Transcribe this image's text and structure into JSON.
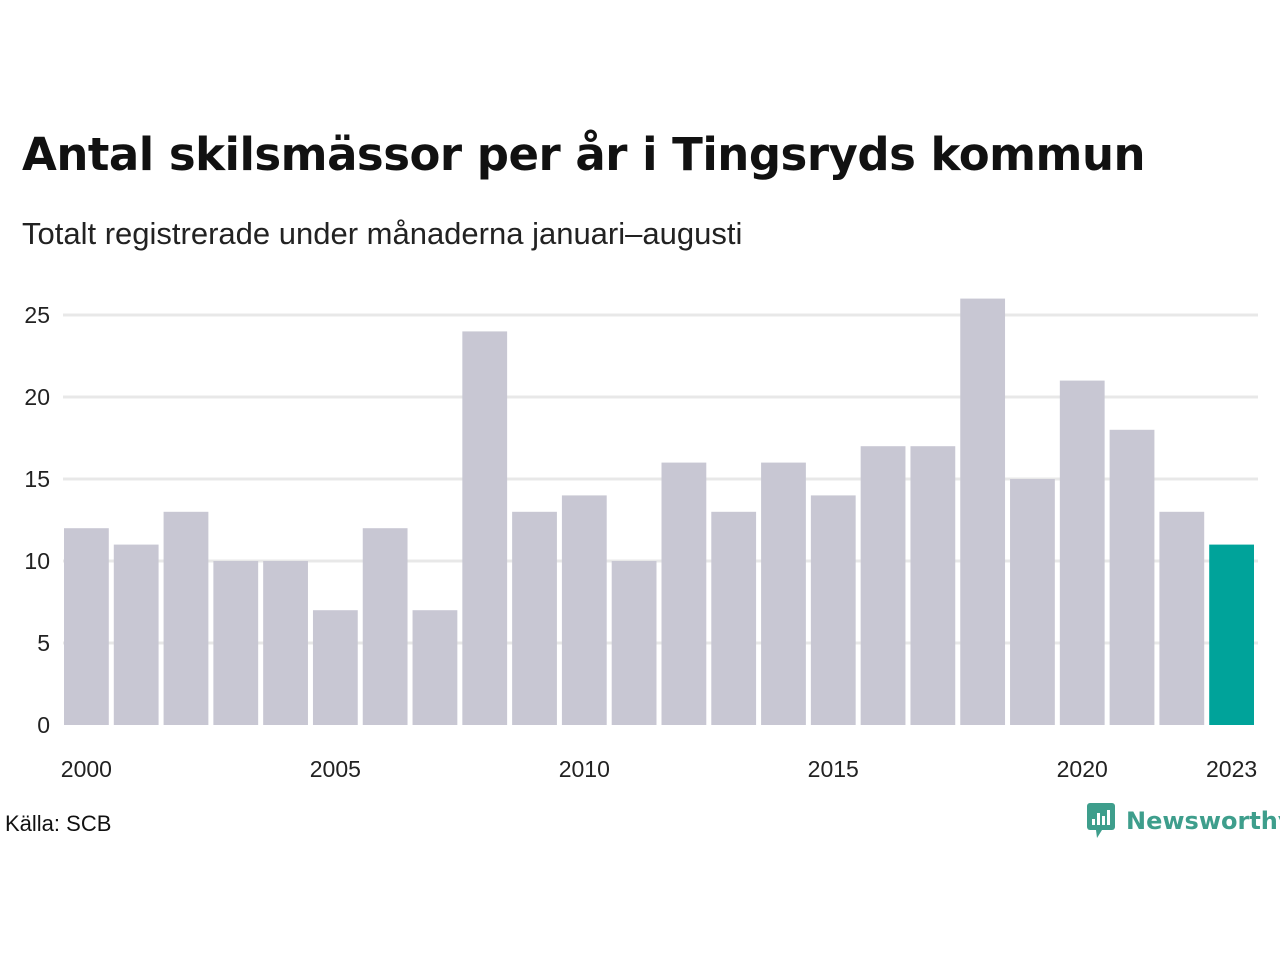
{
  "header": {
    "title": "Antal skilsmässor per år i Tingsryds kommun",
    "subtitle": "Totalt registrerade under månaderna januari–augusti"
  },
  "footer": {
    "source": "Källa: SCB",
    "brand_name": "Newsworthy",
    "brand_icon": "newsworthy-logo-icon",
    "brand_color": "#3e9e8c"
  },
  "chart_data": {
    "type": "bar",
    "title": "Antal skilsmässor per år i Tingsryds kommun",
    "subtitle": "Totalt registrerade under månaderna januari–augusti",
    "xlabel": "",
    "ylabel": "",
    "categories": [
      "2000",
      "2001",
      "2002",
      "2003",
      "2004",
      "2005",
      "2006",
      "2007",
      "2008",
      "2009",
      "2010",
      "2011",
      "2012",
      "2013",
      "2014",
      "2015",
      "2016",
      "2017",
      "2018",
      "2019",
      "2020",
      "2021",
      "2022",
      "2023"
    ],
    "values": [
      12,
      11,
      13,
      10,
      10,
      7,
      12,
      7,
      24,
      13,
      14,
      10,
      16,
      13,
      16,
      14,
      17,
      17,
      26,
      15,
      21,
      18,
      13,
      11
    ],
    "x_tick_labels": [
      "2000",
      "2005",
      "2010",
      "2015",
      "2020",
      "2023"
    ],
    "y_ticks": [
      0,
      5,
      10,
      15,
      20,
      25
    ],
    "ylim": [
      0,
      26
    ],
    "grid": true,
    "legend": "none",
    "highlight_category": "2023",
    "colors": {
      "bar": "#c8c7d3",
      "highlight": "#00a39a",
      "grid": "#e8e8e8"
    }
  }
}
